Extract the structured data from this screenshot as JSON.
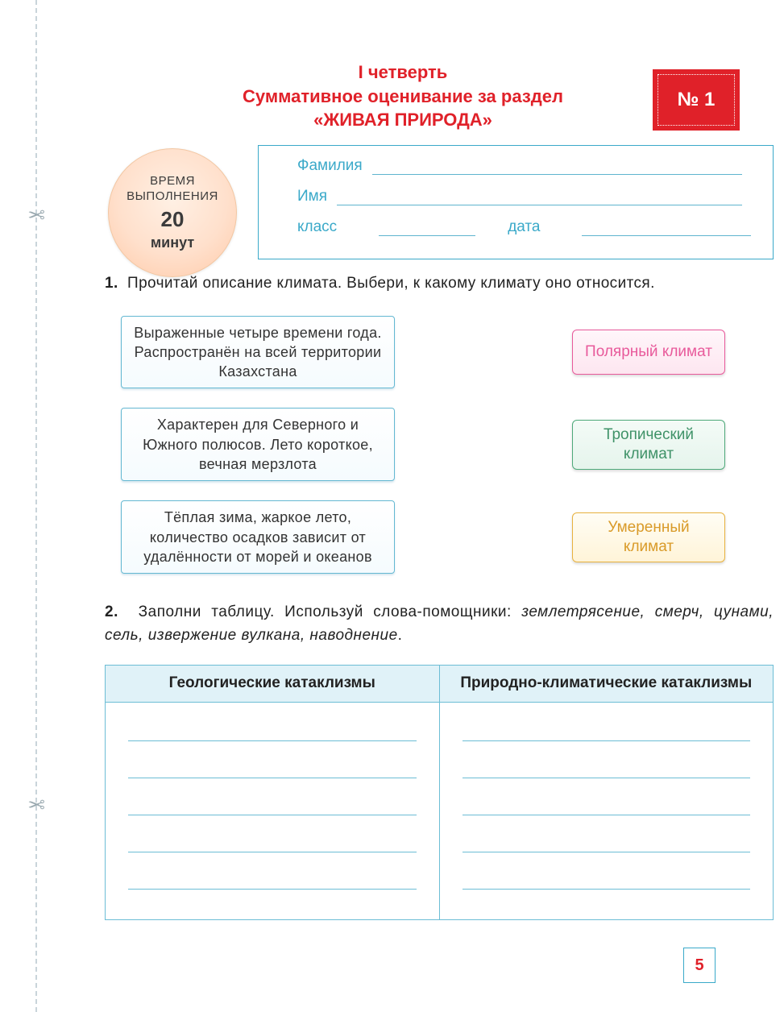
{
  "header": {
    "line1": "I четверть",
    "line2": "Суммативное оценивание за раздел",
    "line3": "«ЖИВАЯ ПРИРОДА»",
    "color": "#e02129"
  },
  "badge": {
    "label": "№ 1",
    "bg": "#e02129",
    "text_color": "#ffffff"
  },
  "timer": {
    "label1": "ВРЕМЯ",
    "label2": "ВЫПОЛНЕНИЯ",
    "value": "20",
    "unit": "минут",
    "bg_gradient": [
      "#fff0e4",
      "#ffe0cc",
      "#ffcaa8"
    ]
  },
  "info": {
    "surname_label": "Фамилия",
    "name_label": "Имя",
    "class_label": "класс",
    "date_label": "дата",
    "border_color": "#3aa9c9",
    "text_color": "#3aa9c9"
  },
  "q1": {
    "number": "1.",
    "text": "Прочитай описание климата. Выбери, к какому климату оно относится.",
    "descriptions": [
      "Выраженные четыре времени года. Распространён на всей территории Казахстана",
      "Характерен для Северного и Южного полюсов. Лето короткое, вечная мерзлота",
      "Тёплая зима, жаркое лето, количество осадков зависит от удалённости от морей и океанов"
    ],
    "answers": [
      {
        "label": "Полярный климат",
        "style": "pink",
        "border": "#e85a9b",
        "text": "#e85a9b"
      },
      {
        "label": "Тропический климат",
        "style": "green",
        "border": "#4ea97a",
        "text": "#3f9268"
      },
      {
        "label": "Умеренный климат",
        "style": "yellow",
        "border": "#e8b23f",
        "text": "#d99a28"
      }
    ],
    "desc_box": {
      "border": "#64b8d2",
      "bg_from": "#ffffff",
      "bg_to": "#f5fbfe"
    }
  },
  "q2": {
    "number": "2.",
    "lead": "Заполни таблицу. Используй слова-помощники: ",
    "helpers_italic": "землетрясение, смерч, цунами, сель, извержение вулкана, наводнение",
    "trail": ".",
    "table": {
      "columns": [
        "Геологические катаклизмы",
        "Природно-климатические катаклизмы"
      ],
      "header_bg": "#e0f2f8",
      "border_color": "#6cbdd5",
      "blank_lines_per_cell": 5
    }
  },
  "page_number": "5",
  "scissors_glyph": "✂"
}
